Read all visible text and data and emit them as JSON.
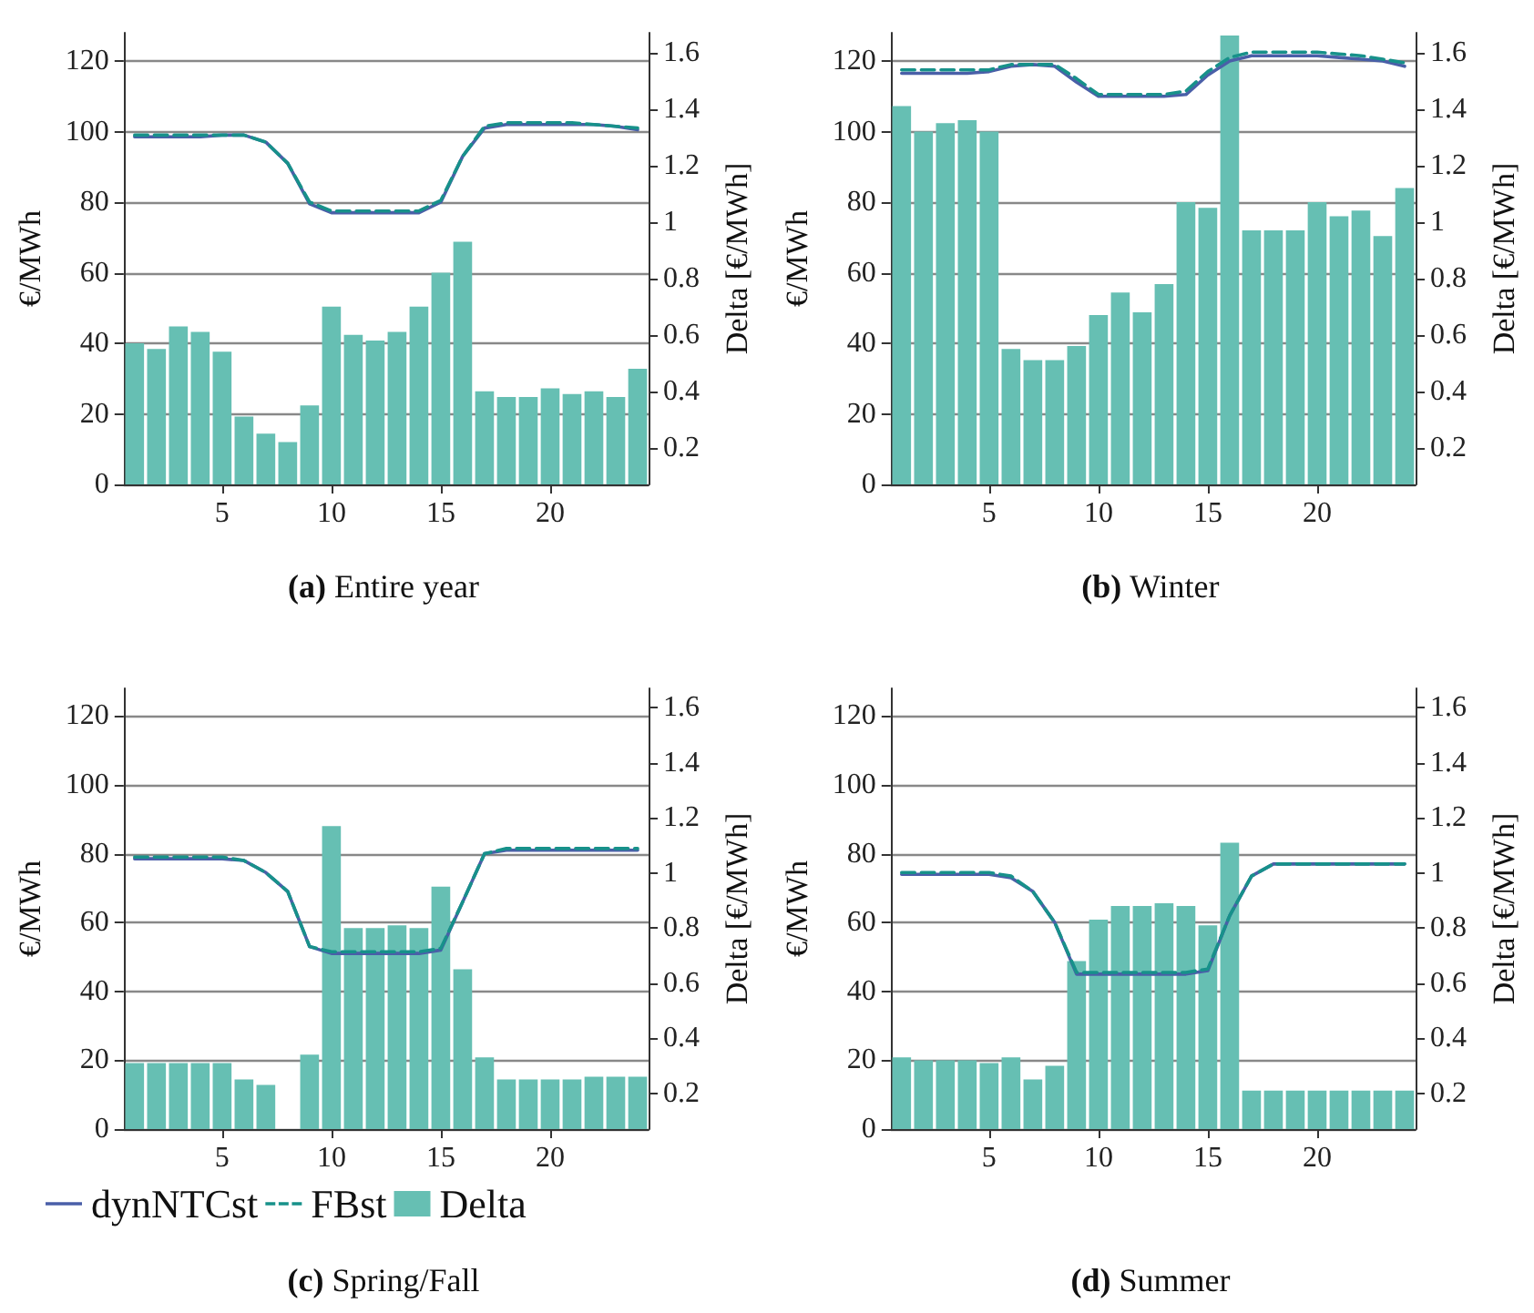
{
  "chart_data": [
    {
      "type": "bar",
      "title": "(a) Entire year",
      "ylabel": "€/MWh",
      "y2label": "Delta [€/MWh]",
      "x": [
        1,
        2,
        3,
        4,
        5,
        6,
        7,
        8,
        9,
        10,
        11,
        12,
        13,
        14,
        15,
        16,
        17,
        18,
        19,
        20,
        21,
        22,
        23,
        24
      ],
      "xlim": [
        0.5,
        24.5
      ],
      "xticks": [
        5,
        10,
        15,
        20
      ],
      "ylim": [
        0,
        128
      ],
      "yticks": [
        0,
        20,
        40,
        60,
        80,
        100,
        120
      ],
      "y2lim": [
        0.07,
        1.67
      ],
      "y2ticks": [
        0.2,
        0.4,
        0.6,
        0.8,
        1,
        1.2,
        1.4,
        1.6
      ],
      "grid": "y",
      "legend": false,
      "marker": "none",
      "series": [
        {
          "axis": "y2",
          "color": "#66bfb3",
          "values": [
            0.57,
            0.55,
            0.63,
            0.61,
            0.54,
            0.31,
            0.25,
            0.22,
            0.35,
            0.7,
            0.6,
            0.58,
            0.61,
            0.7,
            0.82,
            0.93,
            0.4,
            0.38,
            0.38,
            0.41,
            0.39,
            0.4,
            0.38,
            0.48
          ]
        },
        {
          "type": "line",
          "color": "#4a5fa8",
          "line_style": "solid",
          "values": [
            98.5,
            98.5,
            98.5,
            98.5,
            99,
            99,
            97,
            91,
            79.5,
            77,
            77,
            77,
            77,
            77,
            80,
            93,
            101,
            102,
            102,
            102,
            102,
            102,
            101.5,
            100.5
          ]
        },
        {
          "type": "line",
          "color": "#17918a",
          "line_style": "dashed",
          "values": [
            99,
            99,
            99,
            99,
            99,
            99,
            97,
            91,
            80,
            77.5,
            77.5,
            77.5,
            77.5,
            77.5,
            80.5,
            93,
            101.5,
            102.5,
            102.5,
            102.5,
            102.5,
            102,
            101.5,
            101
          ]
        }
      ]
    },
    {
      "type": "bar",
      "title": "(b) Winter",
      "ylabel": "€/MWh",
      "y2label": "Delta [€/MWh]",
      "x": [
        1,
        2,
        3,
        4,
        5,
        6,
        7,
        8,
        9,
        10,
        11,
        12,
        13,
        14,
        15,
        16,
        17,
        18,
        19,
        20,
        21,
        22,
        23,
        24
      ],
      "xlim": [
        0.5,
        24.5
      ],
      "xticks": [
        5,
        10,
        15,
        20
      ],
      "ylim": [
        0,
        128
      ],
      "yticks": [
        0,
        20,
        40,
        60,
        80,
        100,
        120
      ],
      "y2lim": [
        0.07,
        1.67
      ],
      "y2ticks": [
        0.2,
        0.4,
        0.6,
        0.8,
        1,
        1.2,
        1.4,
        1.6
      ],
      "grid": "y",
      "legend": false,
      "marker": "none",
      "series": [
        {
          "axis": "y2",
          "color": "#66bfb3",
          "values": [
            1.41,
            1.32,
            1.35,
            1.36,
            1.32,
            0.55,
            0.51,
            0.51,
            0.56,
            0.67,
            0.75,
            0.68,
            0.78,
            1.07,
            1.05,
            1.66,
            0.97,
            0.97,
            0.97,
            1.07,
            1.02,
            1.04,
            0.95,
            1.12
          ]
        },
        {
          "type": "line",
          "color": "#4a5fa8",
          "line_style": "solid",
          "values": [
            116.5,
            116.5,
            116.5,
            116.5,
            117,
            118.5,
            119,
            118.5,
            114,
            110,
            110,
            110,
            110,
            110.5,
            116,
            120,
            121.5,
            121.5,
            121.5,
            121.5,
            121,
            120.5,
            120,
            118.5
          ]
        },
        {
          "type": "line",
          "color": "#17918a",
          "line_style": "dashed",
          "values": [
            117.5,
            117.5,
            117.5,
            117.5,
            117.5,
            119,
            119,
            119,
            115,
            110.5,
            110.5,
            110.5,
            110.5,
            111.5,
            117,
            121,
            122.5,
            122.5,
            122.5,
            122.5,
            122,
            121.5,
            120.5,
            119.5
          ]
        }
      ]
    },
    {
      "type": "bar",
      "title": "(c) Spring/Fall",
      "ylabel": "€/MWh",
      "y2label": "Delta [€/MWh]",
      "x": [
        1,
        2,
        3,
        4,
        5,
        6,
        7,
        8,
        9,
        10,
        11,
        12,
        13,
        14,
        15,
        16,
        17,
        18,
        19,
        20,
        21,
        22,
        23,
        24
      ],
      "xlim": [
        0.5,
        24.5
      ],
      "xticks": [
        5,
        10,
        15,
        20
      ],
      "ylim": [
        0,
        128
      ],
      "yticks": [
        0,
        20,
        40,
        60,
        80,
        100,
        120
      ],
      "y2lim": [
        0.07,
        1.67
      ],
      "y2ticks": [
        0.2,
        0.4,
        0.6,
        0.8,
        1,
        1.2,
        1.4,
        1.6
      ],
      "grid": "y",
      "legend": "bottom",
      "marker": "none",
      "series": [
        {
          "type": "line",
          "name": "dynNTCst",
          "color": "#4a5fa8",
          "line_style": "solid",
          "values": [
            78.5,
            78.5,
            78.5,
            78.5,
            78.5,
            78,
            74.5,
            69,
            53,
            51,
            51,
            51,
            51,
            51,
            52,
            66,
            80,
            81,
            81,
            81,
            81,
            81,
            81,
            81
          ]
        },
        {
          "type": "line",
          "name": "FBst",
          "color": "#17918a",
          "line_style": "dashed",
          "values": [
            79,
            79,
            79,
            79,
            79,
            78,
            74.5,
            69,
            53,
            51.5,
            51.5,
            51.5,
            51.5,
            51.5,
            52.5,
            66,
            80,
            81.5,
            81.5,
            81.5,
            81.5,
            81.5,
            81.5,
            81.5
          ]
        },
        {
          "name": "Delta",
          "axis": "y2",
          "color": "#66bfb3",
          "values": [
            0.31,
            0.31,
            0.31,
            0.31,
            0.31,
            0.25,
            0.23,
            null,
            0.34,
            1.17,
            0.8,
            0.8,
            0.81,
            0.8,
            0.95,
            0.65,
            0.33,
            0.25,
            0.25,
            0.25,
            0.25,
            0.26,
            0.26,
            0.26
          ]
        }
      ]
    },
    {
      "type": "bar",
      "title": "(d) Summer",
      "ylabel": "€/MWh",
      "y2label": "Delta [€/MWh]",
      "x": [
        1,
        2,
        3,
        4,
        5,
        6,
        7,
        8,
        9,
        10,
        11,
        12,
        13,
        14,
        15,
        16,
        17,
        18,
        19,
        20,
        21,
        22,
        23,
        24
      ],
      "xlim": [
        0.5,
        24.5
      ],
      "xticks": [
        5,
        10,
        15,
        20
      ],
      "ylim": [
        0,
        128
      ],
      "yticks": [
        0,
        20,
        40,
        60,
        80,
        100,
        120
      ],
      "y2lim": [
        0.07,
        1.67
      ],
      "y2ticks": [
        0.2,
        0.4,
        0.6,
        0.8,
        1,
        1.2,
        1.4,
        1.6
      ],
      "grid": "y",
      "legend": false,
      "marker": "none",
      "series": [
        {
          "axis": "y2",
          "color": "#66bfb3",
          "values": [
            0.33,
            0.32,
            0.32,
            0.32,
            0.31,
            0.33,
            0.25,
            0.3,
            0.68,
            0.83,
            0.88,
            0.88,
            0.89,
            0.88,
            0.81,
            1.11,
            0.21,
            0.21,
            0.21,
            0.21,
            0.21,
            0.21,
            0.21,
            0.21
          ]
        },
        {
          "type": "line",
          "color": "#4a5fa8",
          "line_style": "solid",
          "values": [
            74,
            74,
            74,
            74,
            74,
            73,
            69,
            60,
            45,
            45,
            45,
            45,
            45,
            45,
            46,
            62,
            73.5,
            77,
            77,
            77,
            77,
            77,
            77,
            77
          ]
        },
        {
          "type": "line",
          "color": "#17918a",
          "line_style": "dashed",
          "values": [
            74.5,
            74.5,
            74.5,
            74.5,
            74.5,
            73.5,
            69,
            60,
            45.5,
            45.5,
            45.5,
            45.5,
            45.5,
            45.5,
            46.5,
            62,
            73.5,
            77,
            77,
            77,
            77,
            77,
            77,
            77
          ]
        }
      ]
    }
  ]
}
